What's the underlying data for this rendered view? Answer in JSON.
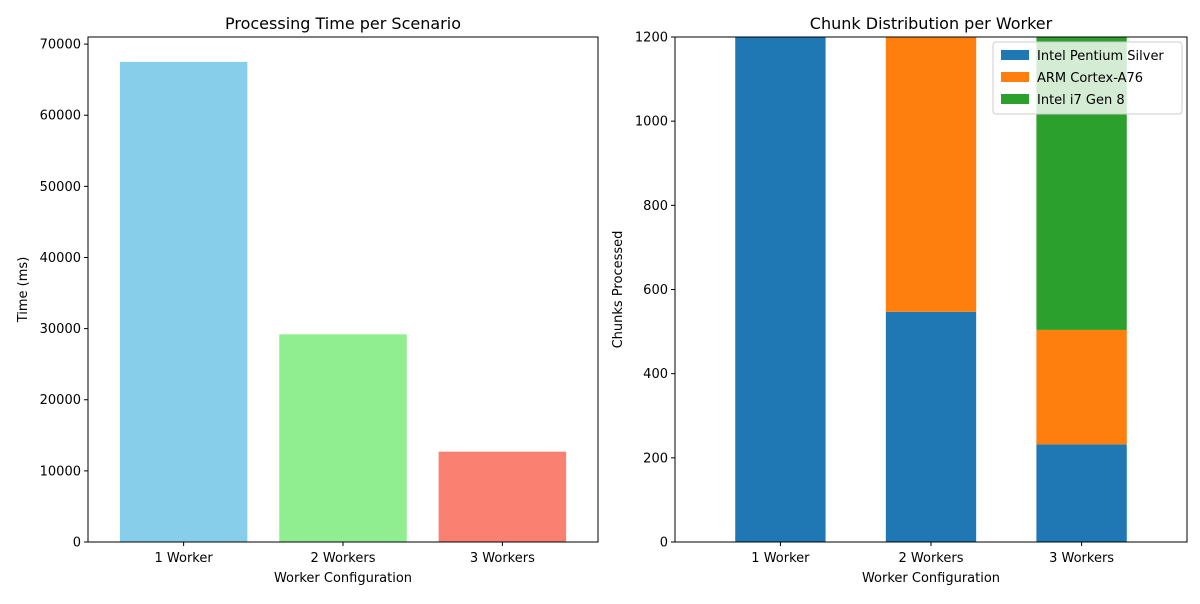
{
  "chart_data": [
    {
      "type": "bar",
      "title": "Processing Time per Scenario",
      "xlabel": "Worker Configuration",
      "ylabel": "Time (ms)",
      "categories": [
        "1 Worker",
        "2 Workers",
        "3 Workers"
      ],
      "values": [
        67500,
        29200,
        12700
      ],
      "colors": [
        "#87ceeb",
        "#90ee90",
        "#fa8072"
      ],
      "ylim": [
        0,
        71000
      ],
      "yticks": [
        0,
        10000,
        20000,
        30000,
        40000,
        50000,
        60000,
        70000
      ],
      "grid": false
    },
    {
      "type": "bar",
      "stacked": true,
      "title": "Chunk Distribution per Worker",
      "xlabel": "Worker Configuration",
      "ylabel": "Chunks Processed",
      "categories": [
        "1 Worker",
        "2 Workers",
        "3 Workers"
      ],
      "series": [
        {
          "name": "Intel Pentium Silver",
          "color": "#1f77b4",
          "values": [
            1200,
            547,
            232
          ]
        },
        {
          "name": "ARM Cortex-A76",
          "color": "#ff7f0e",
          "values": [
            0,
            653,
            272
          ]
        },
        {
          "name": "Intel i7 Gen 8",
          "color": "#2ca02c",
          "values": [
            0,
            0,
            696
          ]
        }
      ],
      "ylim": [
        0,
        1200
      ],
      "yticks": [
        0,
        200,
        400,
        600,
        800,
        1000,
        1200
      ],
      "legend": "top-right",
      "grid": false
    }
  ]
}
